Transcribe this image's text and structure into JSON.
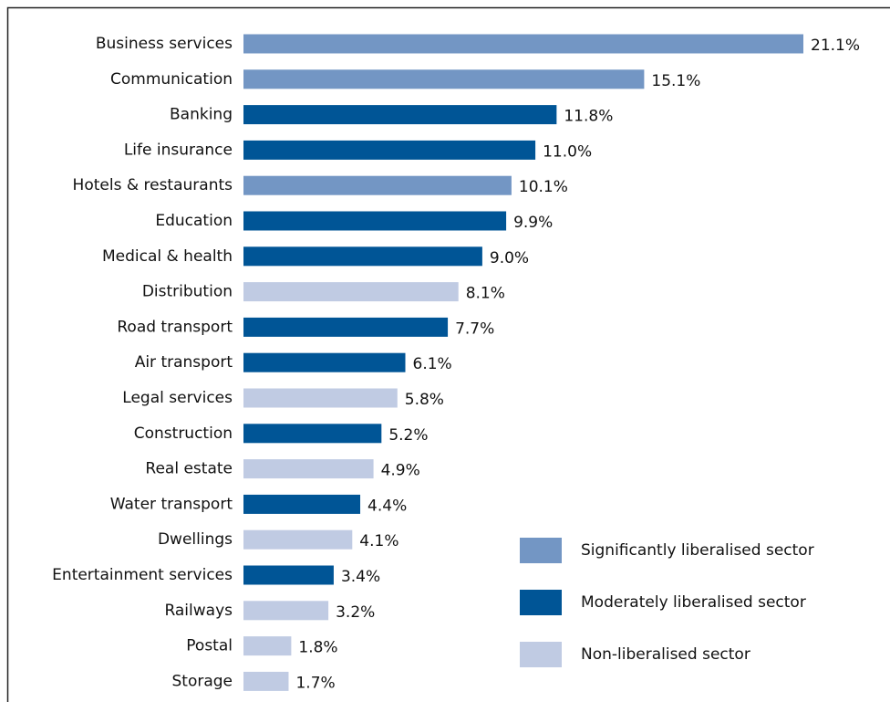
{
  "chart_data": {
    "type": "bar",
    "orientation": "horizontal",
    "categories": [
      "Business services",
      "Communication",
      "Banking",
      "Life insurance",
      "Hotels & restaurants",
      "Education",
      "Medical & health",
      "Distribution",
      "Road transport",
      "Air transport",
      "Legal services",
      "Construction",
      "Real estate",
      "Water transport",
      "Dwellings",
      "Entertainment services",
      "Railways",
      "Postal",
      "Storage"
    ],
    "series": [
      {
        "name": "Significantly liberalised sector",
        "color": "#7396c4",
        "values": [
          21.1,
          15.1,
          null,
          null,
          10.1,
          null,
          null,
          null,
          null,
          null,
          null,
          null,
          null,
          null,
          null,
          null,
          null,
          null,
          null
        ],
        "value_labels": [
          "21.1%",
          "15.1%",
          null,
          null,
          "10.1%",
          null,
          null,
          null,
          null,
          null,
          null,
          null,
          null,
          null,
          null,
          null,
          null,
          null,
          null
        ]
      },
      {
        "name": "Moderately liberalised sector",
        "color": "#005596",
        "values": [
          null,
          null,
          11.8,
          11.0,
          null,
          9.9,
          9.0,
          null,
          7.7,
          6.1,
          null,
          5.2,
          null,
          4.4,
          null,
          3.4,
          null,
          null,
          null
        ],
        "value_labels": [
          null,
          null,
          "11.8%",
          "11.0%",
          null,
          "9.9%",
          "9.0%",
          null,
          "7.7%",
          "6.1%",
          null,
          "5.2%",
          null,
          "4.4%",
          null,
          "3.4%",
          null,
          null,
          null
        ]
      },
      {
        "name": "Non-liberalised sector",
        "color": "#c0cbe3",
        "values": [
          null,
          null,
          null,
          null,
          null,
          null,
          null,
          8.1,
          null,
          null,
          5.8,
          null,
          4.9,
          null,
          4.1,
          null,
          3.2,
          1.8,
          1.7
        ],
        "value_labels": [
          null,
          null,
          null,
          null,
          null,
          null,
          null,
          "8.1%",
          null,
          null,
          "5.8%",
          null,
          "4.9%",
          null,
          "4.1%",
          null,
          "3.2%",
          "1.8%",
          "1.7%"
        ]
      }
    ],
    "legend": "bottom-right"
  }
}
